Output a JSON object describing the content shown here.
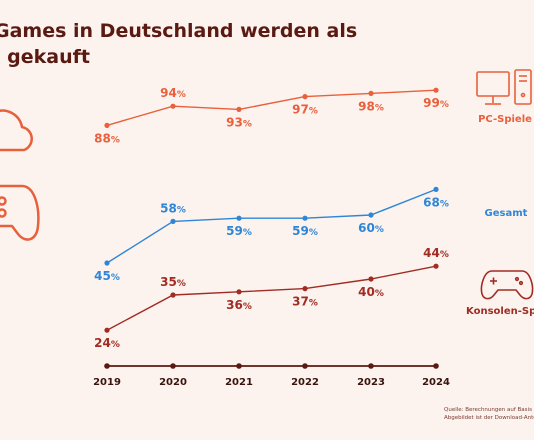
{
  "title": {
    "line1": "Games in Deutschland werden als",
    "line2": "l gekauft"
  },
  "source": {
    "line1": "Quelle: Berechnungen auf Basis",
    "line2": "Abgebildet ist der Download-Anteil an"
  },
  "colors": {
    "background": "#fcf3ee",
    "pc": "#e8603c",
    "gesamt": "#2f86d6",
    "konsole": "#a12c24",
    "axis": "#5a1a12"
  },
  "icons": [
    "cloud-icon",
    "gamepad-icon",
    "computer-icon",
    "console-gamepad-icon"
  ],
  "chart_data": {
    "type": "line",
    "x": [
      "2019",
      "2020",
      "2021",
      "2022",
      "2023",
      "2024"
    ],
    "series": [
      {
        "name": "PC-Spiele",
        "values": [
          88,
          94,
          93,
          97,
          98,
          99
        ],
        "labels": [
          "88",
          "94",
          "93",
          "97",
          "98",
          "99"
        ]
      },
      {
        "name": "Gesamt",
        "values": [
          45,
          58,
          59,
          59,
          60,
          68
        ],
        "labels": [
          "45",
          "58",
          "59",
          "59",
          "60",
          "68"
        ]
      },
      {
        "name": "Konsolen-Spie",
        "values": [
          24,
          35,
          36,
          37,
          40,
          44
        ],
        "labels": [
          "24",
          "35",
          "36",
          "37",
          "40",
          "44"
        ]
      }
    ],
    "unit": "%"
  }
}
